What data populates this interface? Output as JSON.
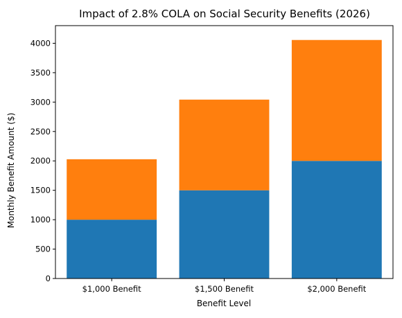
{
  "chart_data": {
    "type": "bar",
    "stacked": true,
    "title": "Impact of 2.8% COLA on Social Security Benefits (2026)",
    "xlabel": "Benefit Level",
    "ylabel": "Monthly Benefit Amount ($)",
    "categories": [
      "$1,000 Benefit",
      "$1,500 Benefit",
      "$2,000 Benefit"
    ],
    "series": [
      {
        "values": [
          1000,
          1500,
          2000
        ],
        "color": "#1f77b4"
      },
      {
        "values": [
          1028,
          1542,
          2056
        ],
        "color": "#ff7f0e"
      }
    ],
    "ylim": [
      0,
      4300
    ],
    "yticks": [
      "0",
      "500",
      "1000",
      "1500",
      "2000",
      "2500",
      "3000",
      "3500",
      "4000"
    ],
    "grid": false,
    "legend": "none"
  }
}
